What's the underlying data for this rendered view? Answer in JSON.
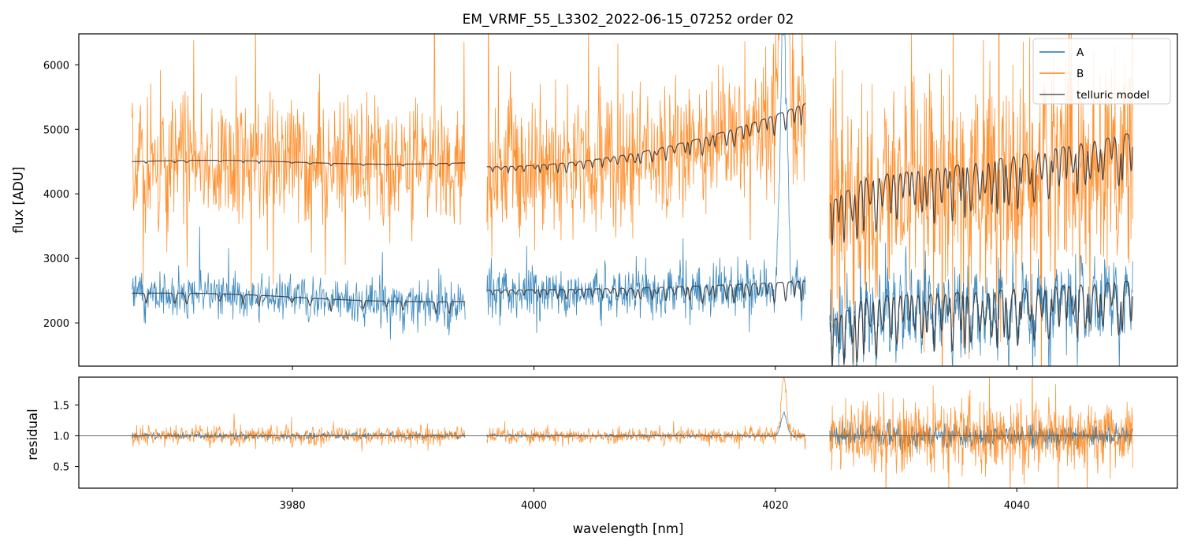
{
  "chart_data": {
    "type": "line",
    "title": "EM_VRMF_55_L3302_2022-06-15_07252  order 02",
    "xlabel": "wavelength [nm]",
    "x_ticks": [
      "3980",
      "4000",
      "4020",
      "4040"
    ],
    "x_tick_values": [
      3980,
      4000,
      4020,
      4040
    ],
    "xlim": [
      3962.3,
      4053.3
    ],
    "segments": [
      [
        3966.7,
        3994.3
      ],
      [
        3996.1,
        4022.5
      ],
      [
        4024.5,
        4049.6
      ]
    ],
    "top_panel": {
      "ylabel": "flux [ADU]",
      "ylim": [
        1330,
        6480
      ],
      "y_ticks": [
        "2000",
        "3000",
        "4000",
        "5000",
        "6000"
      ],
      "y_tick_values": [
        2000,
        3000,
        4000,
        5000,
        6000
      ],
      "series": [
        {
          "name": "A",
          "color": "#1f77b4",
          "mean": [
            2480,
            2470,
            2450
          ],
          "scatter": [
            300,
            320,
            480
          ]
        },
        {
          "name": "B",
          "color": "#ff7f0e",
          "mean": [
            4450,
            4450,
            4500
          ],
          "scatter": [
            900,
            950,
            1500
          ]
        },
        {
          "name": "telluric model",
          "color": "#3a3a3a",
          "model_B": {
            "start": [
              4500,
              4420,
              4250
            ],
            "end": [
              4480,
              5400,
              4950
            ],
            "dip_depth": [
              40,
              350,
              900
            ]
          },
          "model_A": {
            "start": [
              2460,
              2510,
              2400
            ],
            "end": [
              2330,
              2650,
              2650
            ],
            "dip_depth": [
              200,
              350,
              950
            ]
          }
        }
      ],
      "emission_feature": {
        "center": 4020.7,
        "width": 0.35
      }
    },
    "bottom_panel": {
      "ylabel": "residual",
      "ylim": [
        0.15,
        1.95
      ],
      "y_ticks": [
        "0.5",
        "1.0",
        "1.5"
      ],
      "y_tick_values": [
        0.5,
        1.0,
        1.5
      ],
      "reference_line": 1.0,
      "series": [
        {
          "name": "A",
          "color": "#1f77b4",
          "scatter": [
            0.05,
            0.025,
            0.18
          ]
        },
        {
          "name": "B",
          "color": "#ff7f0e",
          "scatter": [
            0.14,
            0.11,
            0.5
          ]
        }
      ]
    },
    "legend": {
      "position": "top-right",
      "entries": [
        "A",
        "B",
        "telluric model"
      ]
    }
  }
}
